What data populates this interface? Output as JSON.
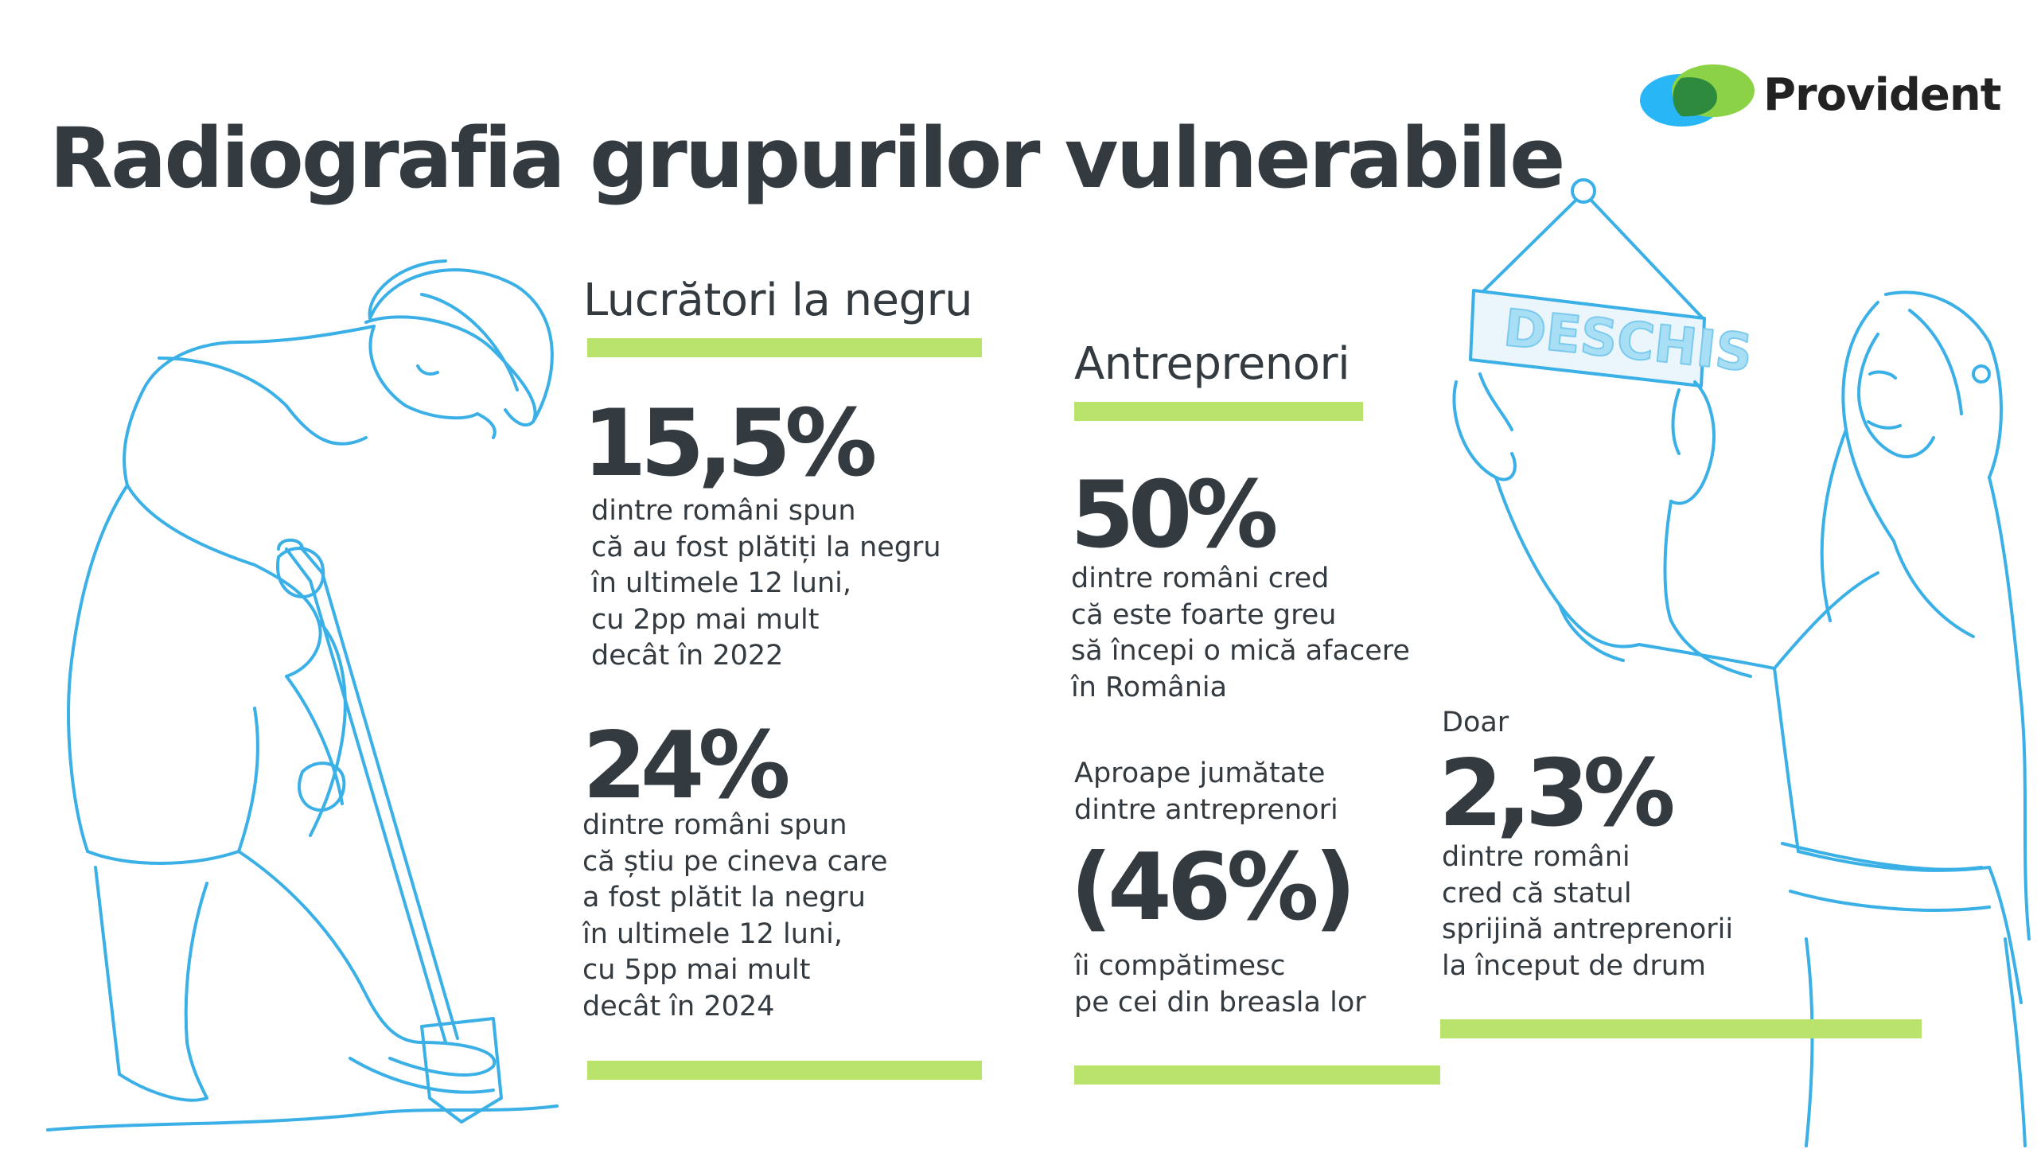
{
  "title": "Radiografia grupurilor vulnerabile",
  "brand": {
    "name": "Provident",
    "colors": {
      "green": "#7ac943",
      "blue": "#29b6f6",
      "dark_green": "#2e8b3e"
    }
  },
  "colors": {
    "accent_bar": "#b9e36a",
    "illustration_line": "#3ab0e6",
    "text": "#333a40"
  },
  "sign_text": "DESCHIS",
  "sections": {
    "workers": {
      "title": "Lucrători la negru",
      "stats": [
        {
          "value": "15,5%",
          "text": "dintre români spun\ncă au fost plătiți la negru\nîn ultimele 12 luni,\ncu 2pp mai mult\ndecât în 2022"
        },
        {
          "value": "24%",
          "text": "dintre români spun\ncă știu pe cineva care\na fost plătit la negru\nîn ultimele 12 luni,\ncu 5pp mai mult\ndecât în 2024"
        }
      ]
    },
    "entrepreneurs": {
      "title": "Antreprenori",
      "stats": [
        {
          "value": "50%",
          "text": "dintre români cred\ncă este foarte greu\nsă începi o mică afacere\nîn România"
        },
        {
          "prefix": "Aproape jumătate\ndintre antreprenori",
          "value": "(46%)",
          "text": "îi compătimesc\npe cei din breasla lor"
        }
      ]
    },
    "state_support": {
      "prefix": "Doar",
      "value": "2,3%",
      "text": "dintre români\ncred că statul\nsprijină antreprenorii\nla început de drum"
    }
  },
  "icons": {
    "logo": "provident-logo-icon",
    "worker": "construction-worker-illustration-icon",
    "woman": "shop-owner-woman-illustration-icon"
  }
}
